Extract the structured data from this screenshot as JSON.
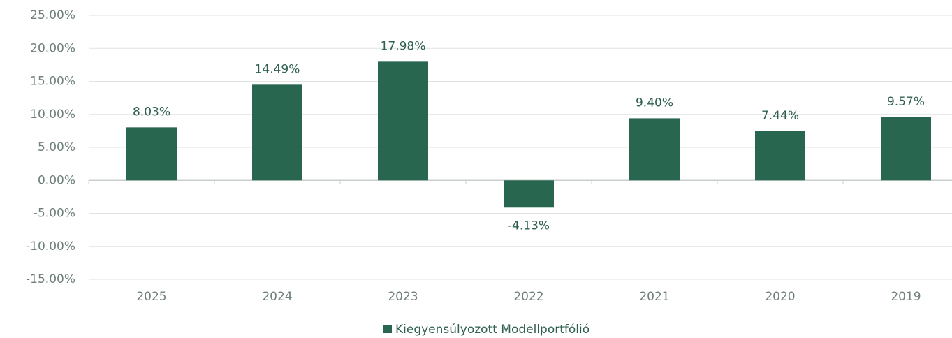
{
  "chart_data": {
    "type": "bar",
    "categories": [
      "2025",
      "2024",
      "2023",
      "2022",
      "2021",
      "2020",
      "2019"
    ],
    "series": [
      {
        "name": "Kiegyensúlyozott Modellportfólió",
        "color": "#28664f",
        "values": [
          8.03,
          14.49,
          17.98,
          -4.13,
          9.4,
          7.44,
          9.57
        ],
        "value_labels": [
          "8.03%",
          "14.49%",
          "17.98%",
          "-4.13%",
          "9.40%",
          "7.44%",
          "9.57%"
        ]
      }
    ],
    "ylim": [
      -15,
      25
    ],
    "yticks": [
      {
        "value": -15,
        "label": "-15.00%"
      },
      {
        "value": -10,
        "label": "-10.00%"
      },
      {
        "value": -5,
        "label": "-5.00%"
      },
      {
        "value": 0,
        "label": "0.00%"
      },
      {
        "value": 5,
        "label": "5.00%"
      },
      {
        "value": 10,
        "label": "10.00%"
      },
      {
        "value": 15,
        "label": "15.00%"
      },
      {
        "value": 20,
        "label": "20.00%"
      },
      {
        "value": 25,
        "label": "25.00%"
      }
    ],
    "grid": true,
    "legend": "bottom"
  }
}
